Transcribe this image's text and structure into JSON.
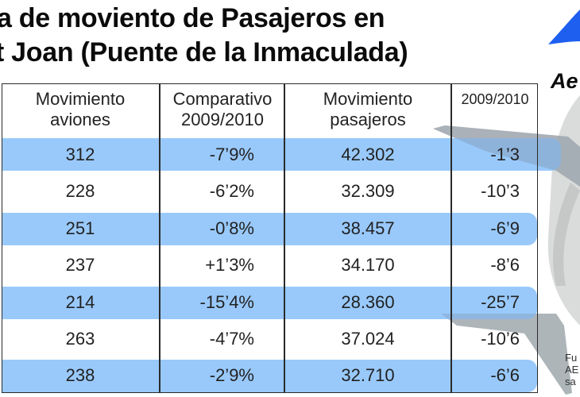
{
  "title": {
    "line1": "a de moviento de Pasajeros en",
    "line2": "t Joan (Puente de la Inmaculada)"
  },
  "logo": {
    "text": "Ae",
    "icon": "aena-wing-icon",
    "color": "#1e5ff0"
  },
  "table": {
    "headers": [
      {
        "line1": "Movimiento",
        "line2": "aviones"
      },
      {
        "line1": "Comparativo",
        "line2": "2009/2010"
      },
      {
        "line1": "Movimiento",
        "line2": "pasajeros"
      },
      {
        "line1": "2009/2010",
        "line2": ""
      }
    ],
    "rows": [
      {
        "aviones": "312",
        "comp_aviones": "-7’9%",
        "pasajeros": "42.302",
        "comp_pasajeros": "-1’3"
      },
      {
        "aviones": "228",
        "comp_aviones": "-6’2%",
        "pasajeros": "32.309",
        "comp_pasajeros": "-10’3"
      },
      {
        "aviones": "251",
        "comp_aviones": "-0’8%",
        "pasajeros": "38.457",
        "comp_pasajeros": "-6’9"
      },
      {
        "aviones": "237",
        "comp_aviones": "+1’3%",
        "pasajeros": "34.170",
        "comp_pasajeros": "-8’6"
      },
      {
        "aviones": "214",
        "comp_aviones": "-15’4%",
        "pasajeros": "28.360",
        "comp_pasajeros": "-25’7"
      },
      {
        "aviones": "263",
        "comp_aviones": "-4’7%",
        "pasajeros": "37.024",
        "comp_pasajeros": "-10’6"
      },
      {
        "aviones": "238",
        "comp_aviones": "-2’9%",
        "pasajeros": "32.710",
        "comp_pasajeros": "-6’6"
      }
    ],
    "band_color": "#99c9fb"
  },
  "source": {
    "line1": "Fu",
    "line2": "AE",
    "line3": "sa"
  }
}
